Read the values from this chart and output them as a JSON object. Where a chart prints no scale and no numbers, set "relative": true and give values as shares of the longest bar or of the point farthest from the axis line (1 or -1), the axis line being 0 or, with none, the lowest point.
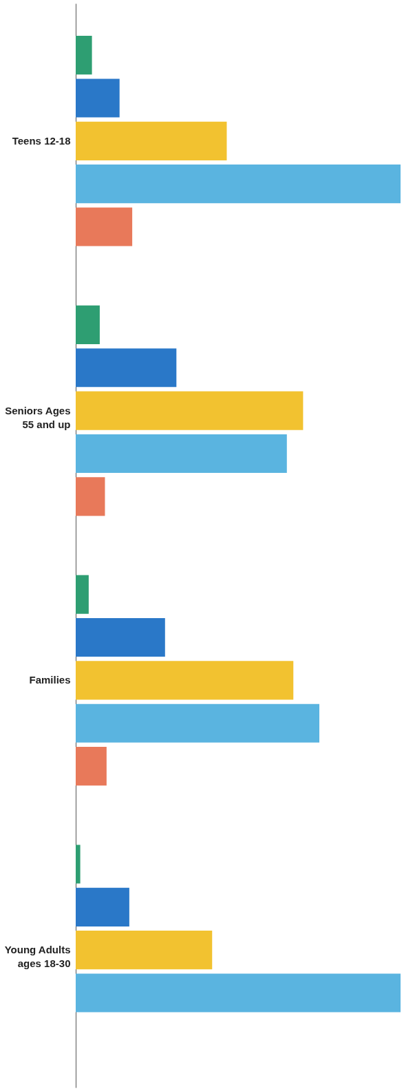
{
  "chart_data": {
    "type": "bar",
    "orientation": "horizontal",
    "relative": true,
    "legend": false,
    "categories": [
      "Teens 12-18",
      "Seniors Ages 55 and up",
      "Families",
      "Young Adults ages 18-30"
    ],
    "series": [
      {
        "color": "#2e9e72",
        "values": [
          0.05,
          0.074,
          0.04,
          0.014
        ]
      },
      {
        "color": "#2a78c8",
        "values": [
          0.135,
          0.31,
          0.275,
          0.165
        ]
      },
      {
        "color": "#f2c230",
        "values": [
          0.465,
          0.7,
          0.67,
          0.42
        ]
      },
      {
        "color": "#5ab4e0",
        "values": [
          1,
          0.65,
          0.75,
          1
        ]
      },
      {
        "color": "#e8795a",
        "values": [
          0.174,
          0.09,
          0.095,
          null
        ]
      }
    ]
  }
}
